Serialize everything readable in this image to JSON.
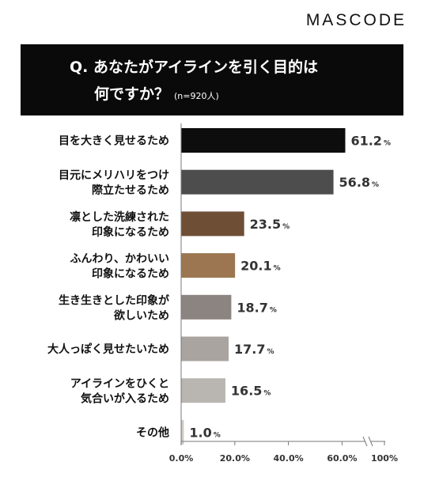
{
  "brand": "MASCODE",
  "question": {
    "line1": "Q. あなたがアイラインを引く目的は",
    "line2": "何ですか？",
    "sample": "(n=920人)"
  },
  "chart_data": {
    "type": "bar",
    "orientation": "horizontal",
    "title": "Q. あなたがアイラインを引く目的は何ですか？",
    "categories": [
      [
        "目を大きく見せるため"
      ],
      [
        "目元にメリハリをつけ",
        "際立たせるため"
      ],
      [
        "凛とした洗練された",
        "印象になるため"
      ],
      [
        "ふんわり、かわいい",
        "印象になるため"
      ],
      [
        "生き生きとした印象が",
        "欲しいため"
      ],
      [
        "大人っぽく見せたいため"
      ],
      [
        "アイラインをひくと",
        "気合いが入るため"
      ],
      [
        "その他"
      ]
    ],
    "values": [
      61.2,
      56.8,
      23.5,
      20.1,
      18.7,
      17.7,
      16.5,
      1.0
    ],
    "value_labels": [
      "61.2",
      "56.8",
      "23.5",
      "20.1",
      "18.7",
      "17.7",
      "16.5",
      "1.0"
    ],
    "unit": "%",
    "colors": [
      "#0d0d0d",
      "#4d4d4d",
      "#6e4e35",
      "#9b7650",
      "#8b8480",
      "#a9a49f",
      "#b9b5b0",
      "#cfcac5"
    ],
    "x_ticks": [
      "0.0%",
      "20.0%",
      "40.0%",
      "60.0%",
      "100%"
    ],
    "xlim": [
      0,
      100
    ],
    "axis_break": true,
    "grid": false
  }
}
